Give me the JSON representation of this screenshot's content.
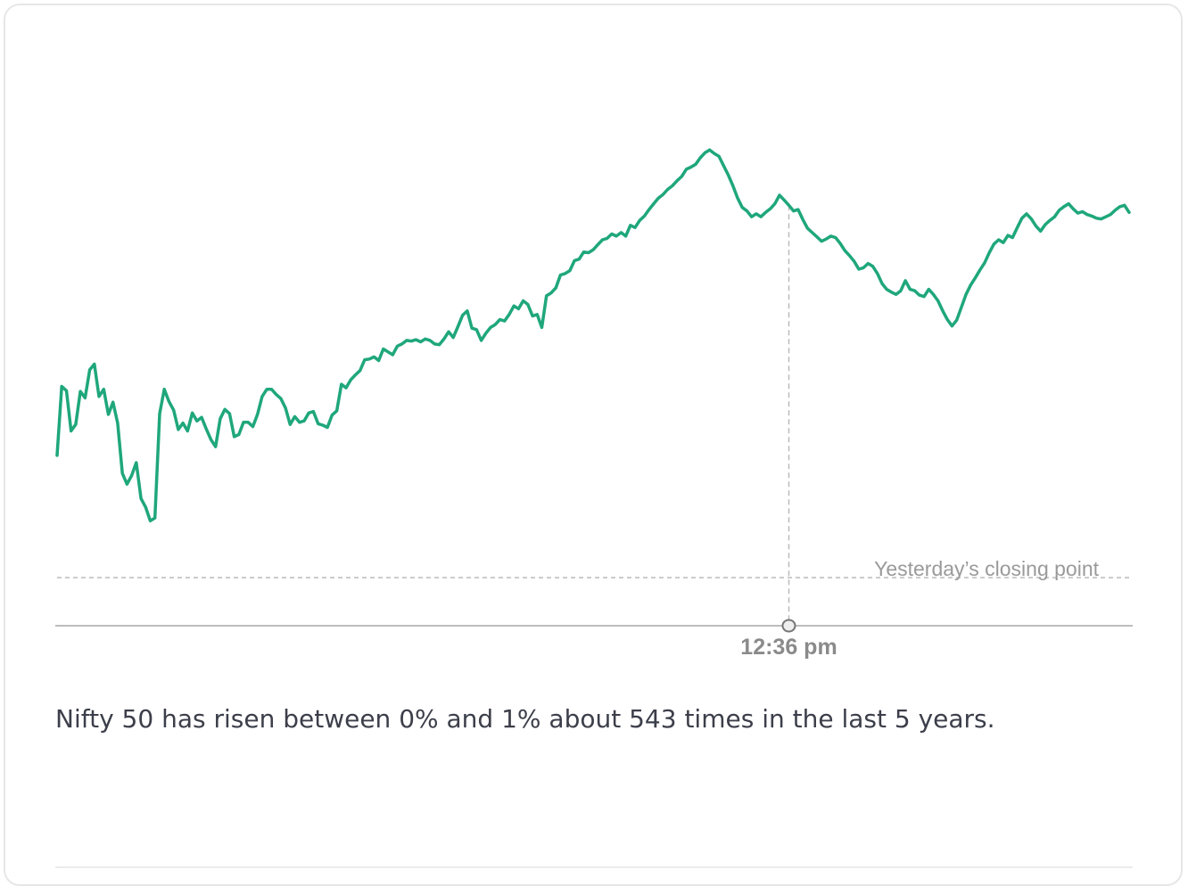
{
  "colors": {
    "line": "#1fa77b",
    "reference": "#cccccc",
    "axis": "#bdbdbd",
    "crosshair": "#bbbbbb"
  },
  "chart_data": {
    "type": "line",
    "series": [
      {
        "values": [
          170,
          266,
          260,
          204,
          213,
          259,
          250,
          289,
          297,
          252,
          262,
          227,
          244,
          215,
          145,
          130,
          142,
          160,
          110,
          98,
          79,
          83,
          228,
          262,
          245,
          233,
          206,
          215,
          204,
          229,
          218,
          223,
          207,
          192,
          182,
          221,
          234,
          228,
          196,
          199,
          216,
          216,
          210,
          227,
          252,
          262,
          262,
          255,
          249,
          236,
          213,
          224,
          216,
          218,
          229,
          231,
          214,
          212,
          209,
          226,
          232,
          269,
          264,
          275,
          282,
          288,
          303,
          304,
          307,
          302,
          318,
          314,
          310,
          322,
          325,
          330,
          329,
          331,
          328,
          332,
          330,
          325,
          324,
          332,
          342,
          334,
          349,
          365,
          371,
          347,
          345,
          330,
          340,
          348,
          352,
          359,
          357,
          366,
          378,
          374,
          385,
          380,
          364,
          366,
          348,
          392,
          396,
          403,
          421,
          423,
          427,
          441,
          443,
          453,
          452,
          456,
          463,
          470,
          472,
          478,
          475,
          480,
          475,
          490,
          487,
          497,
          503,
          512,
          520,
          528,
          533,
          540,
          545,
          552,
          558,
          568,
          571,
          575,
          584,
          591,
          595,
          590,
          586,
          573,
          560,
          545,
          528,
          515,
          510,
          502,
          506,
          502,
          508,
          513,
          520,
          532,
          525,
          518,
          510,
          512,
          498,
          486,
          480,
          474,
          468,
          471,
          475,
          473,
          465,
          455,
          448,
          440,
          429,
          431,
          437,
          433,
          423,
          409,
          401,
          397,
          394,
          399,
          413,
          401,
          399,
          393,
          391,
          401,
          394,
          385,
          371,
          359,
          350,
          358,
          376,
          394,
          407,
          417,
          428,
          438,
          452,
          464,
          470,
          466,
          476,
          473,
          487,
          500,
          506,
          499,
          489,
          482,
          491,
          497,
          502,
          511,
          516,
          520,
          513,
          507,
          509,
          505,
          503,
          500,
          499,
          502,
          505,
          511,
          516,
          518,
          508
        ]
      }
    ],
    "reference_line": {
      "label": "Yesterday’s closing point",
      "value": 0
    },
    "crosshair": {
      "label": "12:36 pm",
      "index": 157
    },
    "ylim": [
      0,
      620
    ],
    "grid": false
  },
  "caption": "Nifty 50 has risen between 0% and 1% about 543 times in the last 5 years."
}
